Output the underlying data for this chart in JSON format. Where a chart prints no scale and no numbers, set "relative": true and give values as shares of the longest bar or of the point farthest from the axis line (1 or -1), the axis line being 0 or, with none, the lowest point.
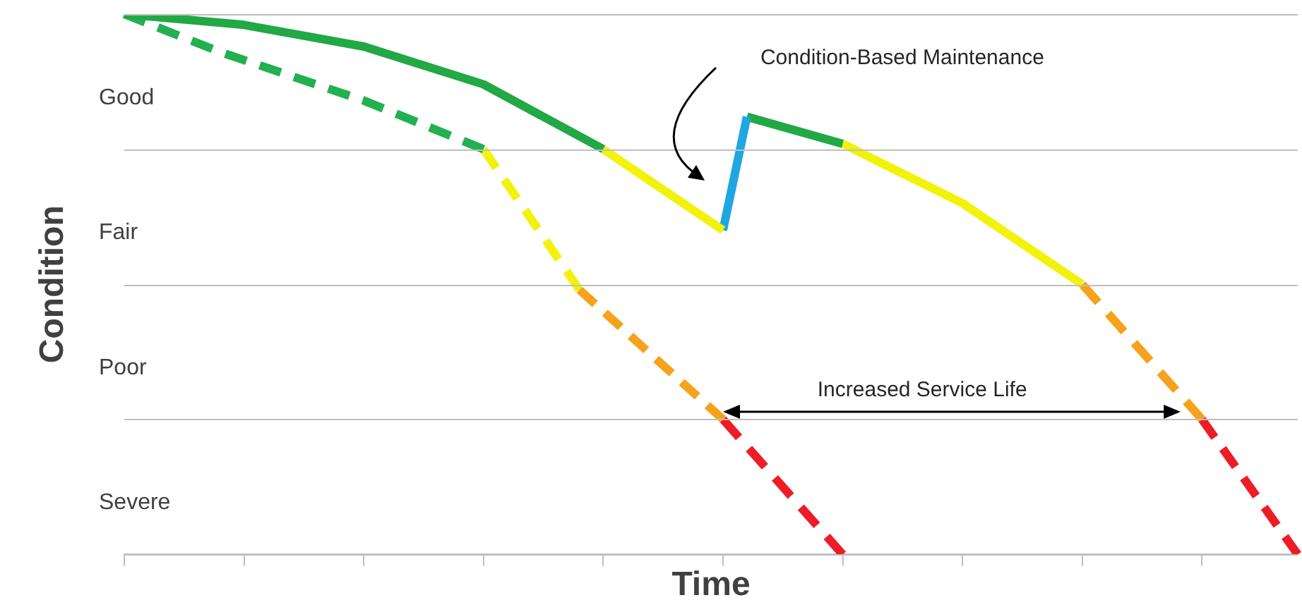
{
  "chart_data": {
    "type": "line",
    "xlabel": "Time",
    "ylabel": "Condition",
    "relative": true,
    "categories": [
      null,
      null,
      null,
      null,
      null,
      null,
      null,
      null,
      null,
      null,
      null,
      null,
      null,
      null,
      null,
      null,
      null,
      null,
      null,
      null,
      null,
      null,
      null,
      null,
      null,
      null,
      null,
      null,
      null,
      null,
      null,
      null,
      null,
      null,
      null,
      null,
      null,
      null,
      null,
      null,
      null,
      null,
      null,
      null,
      null,
      null,
      null,
      null,
      null,
      null
    ],
    "ref_lines": [
      {
        "axis": "y",
        "value": 1
      },
      {
        "axis": "y",
        "value": 0.75,
        "label": "Good"
      },
      {
        "axis": "y",
        "value": 0.5,
        "label": "Fair"
      },
      {
        "axis": "y",
        "value": 0.25,
        "label": "Poor"
      },
      {
        "axis": "y",
        "value": 0,
        "label": "Severe"
      }
    ],
    "legend": false,
    "tick_labels": false,
    "marker": "none",
    "series": [
      {
        "color": "#22a845",
        "line_style": "solid",
        "values": [
          1,
          null,
          null,
          null,
          null,
          0.98,
          null,
          null,
          null,
          null,
          0.94,
          null,
          null,
          null,
          null,
          0.87,
          null,
          null,
          null,
          null,
          0.75,
          null,
          null,
          null,
          null,
          null,
          null,
          null,
          null,
          null,
          null,
          null,
          null,
          null,
          null,
          null,
          null,
          null,
          null,
          null,
          null,
          null,
          null,
          null,
          null,
          null,
          null,
          null,
          null,
          null
        ]
      },
      {
        "color": "#f2f20a",
        "line_style": "solid",
        "values": [
          null,
          null,
          null,
          null,
          null,
          null,
          null,
          null,
          null,
          null,
          null,
          null,
          null,
          null,
          null,
          null,
          null,
          null,
          null,
          null,
          0.75,
          null,
          null,
          null,
          null,
          0.6,
          null,
          null,
          null,
          null,
          null,
          null,
          null,
          null,
          null,
          null,
          null,
          null,
          null,
          null,
          null,
          null,
          null,
          null,
          null,
          null,
          null,
          null,
          null,
          null
        ]
      },
      {
        "color": "#1ea7e1",
        "line_style": "solid",
        "values": [
          null,
          null,
          null,
          null,
          null,
          null,
          null,
          null,
          null,
          null,
          null,
          null,
          null,
          null,
          null,
          null,
          null,
          null,
          null,
          null,
          null,
          null,
          null,
          null,
          null,
          0.6,
          0.81,
          null,
          null,
          null,
          null,
          null,
          null,
          null,
          null,
          null,
          null,
          null,
          null,
          null,
          null,
          null,
          null,
          null,
          null,
          null,
          null,
          null,
          null,
          null
        ]
      },
      {
        "color": "#22a845",
        "line_style": "solid",
        "values": [
          null,
          null,
          null,
          null,
          null,
          null,
          null,
          null,
          null,
          null,
          null,
          null,
          null,
          null,
          null,
          null,
          null,
          null,
          null,
          null,
          null,
          null,
          null,
          null,
          null,
          null,
          0.81,
          null,
          null,
          null,
          0.76,
          null,
          null,
          null,
          null,
          null,
          null,
          null,
          null,
          null,
          null,
          null,
          null,
          null,
          null,
          null,
          null,
          null,
          null,
          null
        ]
      },
      {
        "color": "#f2f20a",
        "line_style": "solid",
        "values": [
          null,
          null,
          null,
          null,
          null,
          null,
          null,
          null,
          null,
          null,
          null,
          null,
          null,
          null,
          null,
          null,
          null,
          null,
          null,
          null,
          null,
          null,
          null,
          null,
          null,
          null,
          null,
          null,
          null,
          null,
          0.76,
          null,
          null,
          null,
          null,
          0.65,
          null,
          null,
          null,
          null,
          0.5,
          null,
          null,
          null,
          null,
          null,
          null,
          null,
          null,
          null
        ]
      },
      {
        "color": "#f7a21b",
        "line_style": "dashed",
        "values": [
          null,
          null,
          null,
          null,
          null,
          null,
          null,
          null,
          null,
          null,
          null,
          null,
          null,
          null,
          null,
          null,
          null,
          null,
          null,
          null,
          null,
          null,
          null,
          null,
          null,
          null,
          null,
          null,
          null,
          null,
          null,
          null,
          null,
          null,
          null,
          null,
          null,
          null,
          null,
          null,
          0.5,
          null,
          null,
          null,
          null,
          0.25,
          null,
          null,
          null,
          null
        ]
      },
      {
        "color": "#ee1c25",
        "line_style": "dashed",
        "values": [
          null,
          null,
          null,
          null,
          null,
          null,
          null,
          null,
          null,
          null,
          null,
          null,
          null,
          null,
          null,
          null,
          null,
          null,
          null,
          null,
          null,
          null,
          null,
          null,
          null,
          null,
          null,
          null,
          null,
          null,
          null,
          null,
          null,
          null,
          null,
          null,
          null,
          null,
          null,
          null,
          null,
          null,
          null,
          null,
          null,
          0.25,
          null,
          null,
          null,
          0
        ]
      },
      {
        "color": "#22b050",
        "line_style": "dashed",
        "values": [
          1,
          null,
          null,
          null,
          0.93,
          null,
          null,
          null,
          null,
          null,
          0.84,
          null,
          null,
          null,
          null,
          0.75,
          null,
          null,
          null,
          null,
          null,
          null,
          null,
          null,
          null,
          null,
          null,
          null,
          null,
          null,
          null,
          null,
          null,
          null,
          null,
          null,
          null,
          null,
          null,
          null,
          null,
          null,
          null,
          null,
          null,
          null,
          null,
          null,
          null,
          null
        ]
      },
      {
        "color": "#f2f20a",
        "line_style": "dashed",
        "values": [
          null,
          null,
          null,
          null,
          null,
          null,
          null,
          null,
          null,
          null,
          null,
          null,
          null,
          null,
          null,
          0.75,
          null,
          null,
          null,
          0.49,
          null,
          null,
          null,
          null,
          null,
          null,
          null,
          null,
          null,
          null,
          null,
          null,
          null,
          null,
          null,
          null,
          null,
          null,
          null,
          null,
          null,
          null,
          null,
          null,
          null,
          null,
          null,
          null,
          null,
          null
        ]
      },
      {
        "color": "#f7a21b",
        "line_style": "dashed",
        "values": [
          null,
          null,
          null,
          null,
          null,
          null,
          null,
          null,
          null,
          null,
          null,
          null,
          null,
          null,
          null,
          null,
          null,
          null,
          null,
          0.49,
          null,
          null,
          null,
          null,
          null,
          0.25,
          null,
          null,
          null,
          null,
          null,
          null,
          null,
          null,
          null,
          null,
          null,
          null,
          null,
          null,
          null,
          null,
          null,
          null,
          null,
          null,
          null,
          null,
          null,
          null
        ]
      },
      {
        "color": "#ee1c25",
        "line_style": "dashed",
        "values": [
          null,
          null,
          null,
          null,
          null,
          null,
          null,
          null,
          null,
          null,
          null,
          null,
          null,
          null,
          null,
          null,
          null,
          null,
          null,
          null,
          null,
          null,
          null,
          null,
          null,
          0.25,
          null,
          null,
          null,
          null,
          0,
          null,
          null,
          null,
          null,
          null,
          null,
          null,
          null,
          null,
          null,
          null,
          null,
          null,
          null,
          null,
          null,
          null,
          null,
          null
        ]
      }
    ],
    "annotations": [
      "Condition-Based Maintenance",
      "Increased Service Life"
    ]
  }
}
